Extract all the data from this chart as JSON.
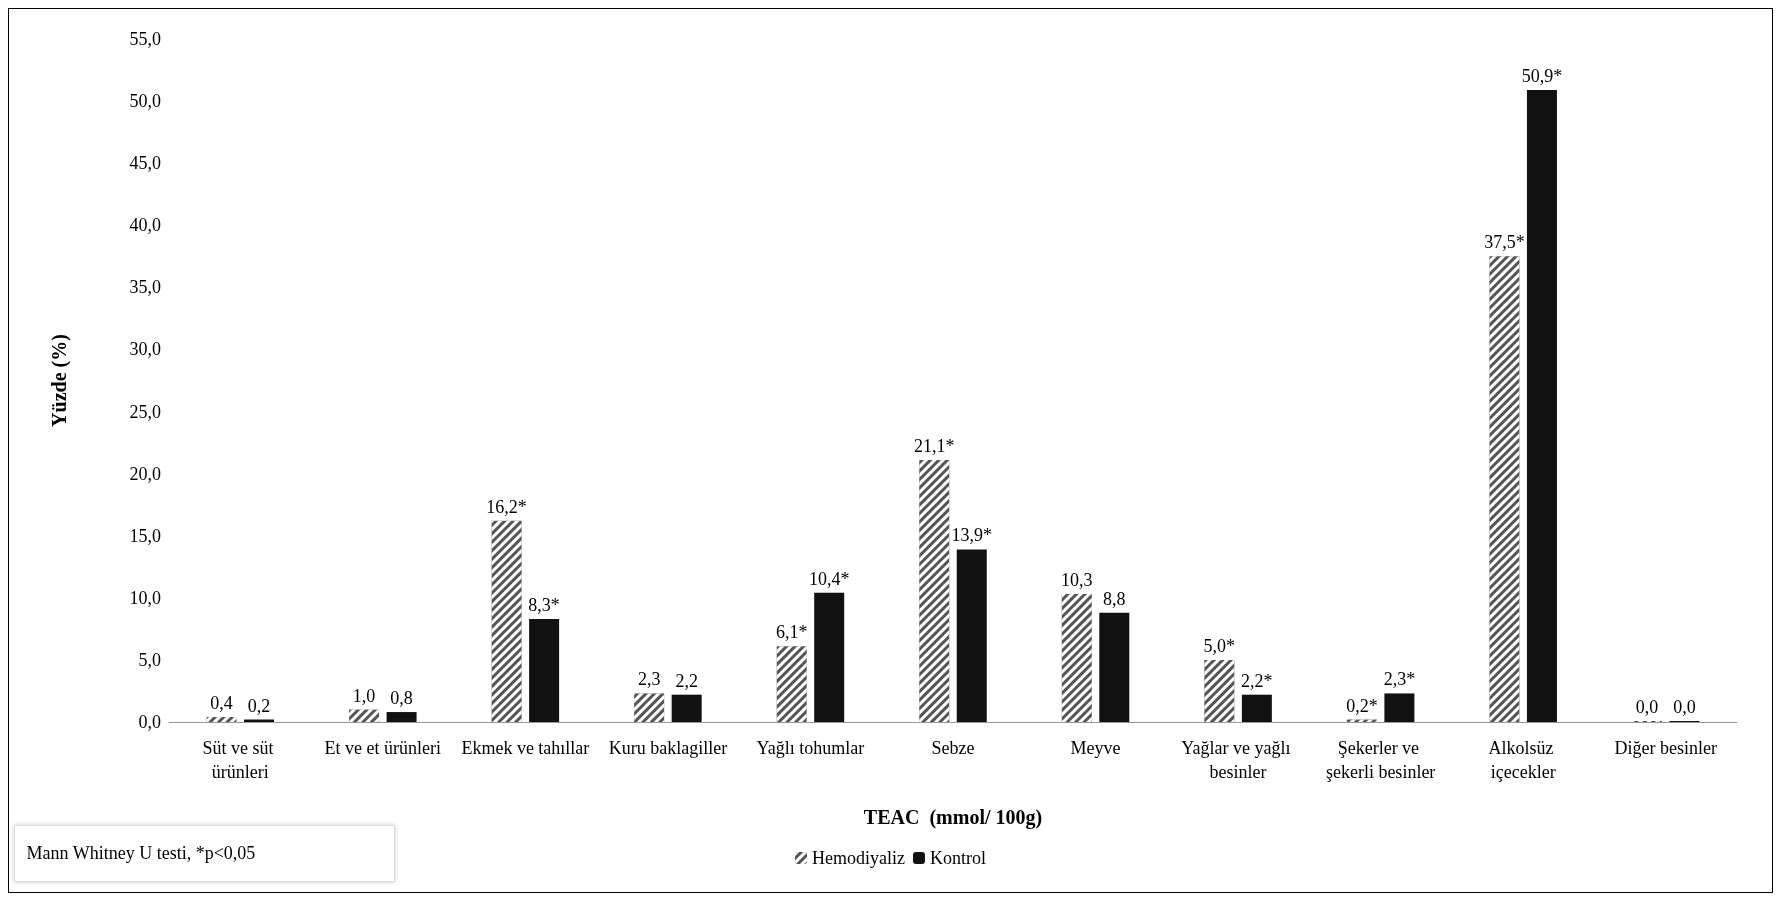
{
  "chart_data": {
    "type": "bar",
    "xlabel": "TEAC  (mmol/ 100g)",
    "ylabel": "Yüzde (%)",
    "categories": [
      "Süt ve süt ürünleri",
      "Et ve et ürünleri",
      "Ekmek ve tahıllar",
      "Kuru baklagiller",
      "Yağlı tohumlar",
      "Sebze",
      "Meyve",
      "Yağlar ve yağlı besinler",
      "Şekerler ve şekerli besinler",
      "Alkolsüz içecekler",
      "Diğer besinler"
    ],
    "series": [
      {
        "name": "Hemodiyaliz",
        "color": "#555555",
        "values": [
          0.4,
          1.0,
          16.2,
          2.3,
          6.1,
          21.1,
          10.3,
          5.0,
          0.2,
          37.5,
          0.0
        ],
        "value_labels": [
          "0,4",
          "1,0",
          "16,2*",
          "2,3",
          "6,1*",
          "21,1*",
          "10,3",
          "5,0*",
          "0,2*",
          "37,5*",
          "0,0"
        ]
      },
      {
        "name": "Kontrol",
        "color": "#111111",
        "values": [
          0.2,
          0.8,
          8.3,
          2.2,
          10.4,
          13.9,
          8.8,
          2.2,
          2.3,
          50.9,
          0.0
        ],
        "value_labels": [
          "0,2",
          "0,8",
          "8,3*",
          "2,2",
          "10,4*",
          "13,9*",
          "8,8",
          "2,2*",
          "2,3*",
          "50,9*",
          "0,0"
        ]
      }
    ],
    "ylim": [
      0,
      55
    ],
    "yticks": [
      {
        "value": 0,
        "label": "0,0"
      },
      {
        "value": 5,
        "label": "5,0"
      },
      {
        "value": 10,
        "label": "10,0"
      },
      {
        "value": 15,
        "label": "15,0"
      },
      {
        "value": 20,
        "label": "20,0"
      },
      {
        "value": 25,
        "label": "25,0"
      },
      {
        "value": 30,
        "label": "30,0"
      },
      {
        "value": 35,
        "label": "35,0"
      },
      {
        "value": 40,
        "label": "40,0"
      },
      {
        "value": 45,
        "label": "45,0"
      },
      {
        "value": 50,
        "label": "50,0"
      },
      {
        "value": 55,
        "label": "55,0"
      }
    ],
    "grid": false,
    "legend": "bottom",
    "annotations": [
      "Mann Whitney U testi, *p<0,05"
    ]
  }
}
